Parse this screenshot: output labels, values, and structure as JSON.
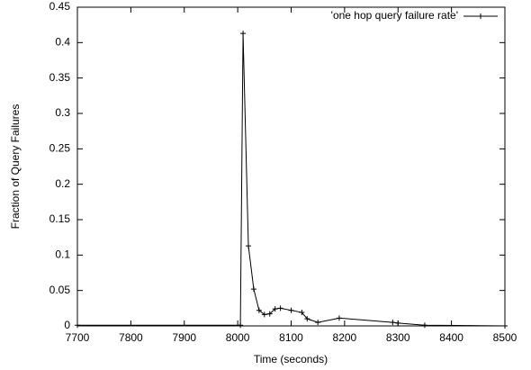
{
  "chart_data": {
    "type": "line",
    "xlabel": "Time (seconds)",
    "ylabel": "Fraction of Query Failures",
    "series": [
      {
        "name": "'one hop query failure rate'",
        "color": "#000000",
        "x": [
          7700,
          8005,
          8010,
          8020,
          8030,
          8040,
          8050,
          8060,
          8070,
          8080,
          8100,
          8120,
          8130,
          8150,
          8190,
          8290,
          8300,
          8350,
          8500
        ],
        "values": [
          0.001,
          0.001,
          0.413,
          0.113,
          0.052,
          0.022,
          0.016,
          0.017,
          0.024,
          0.025,
          0.022,
          0.019,
          0.01,
          0.005,
          0.011,
          0.005,
          0.004,
          0.001,
          0
        ]
      }
    ],
    "xlim": [
      7700,
      8500
    ],
    "xticks": [
      7700,
      7800,
      7900,
      8000,
      8100,
      8200,
      8300,
      8400,
      8500
    ],
    "ylim": [
      0,
      0.45
    ],
    "yticks": [
      0,
      0.05,
      0.1,
      0.15,
      0.2,
      0.25,
      0.3,
      0.35,
      0.4,
      0.45
    ],
    "legend": "top-right",
    "grid": false
  }
}
